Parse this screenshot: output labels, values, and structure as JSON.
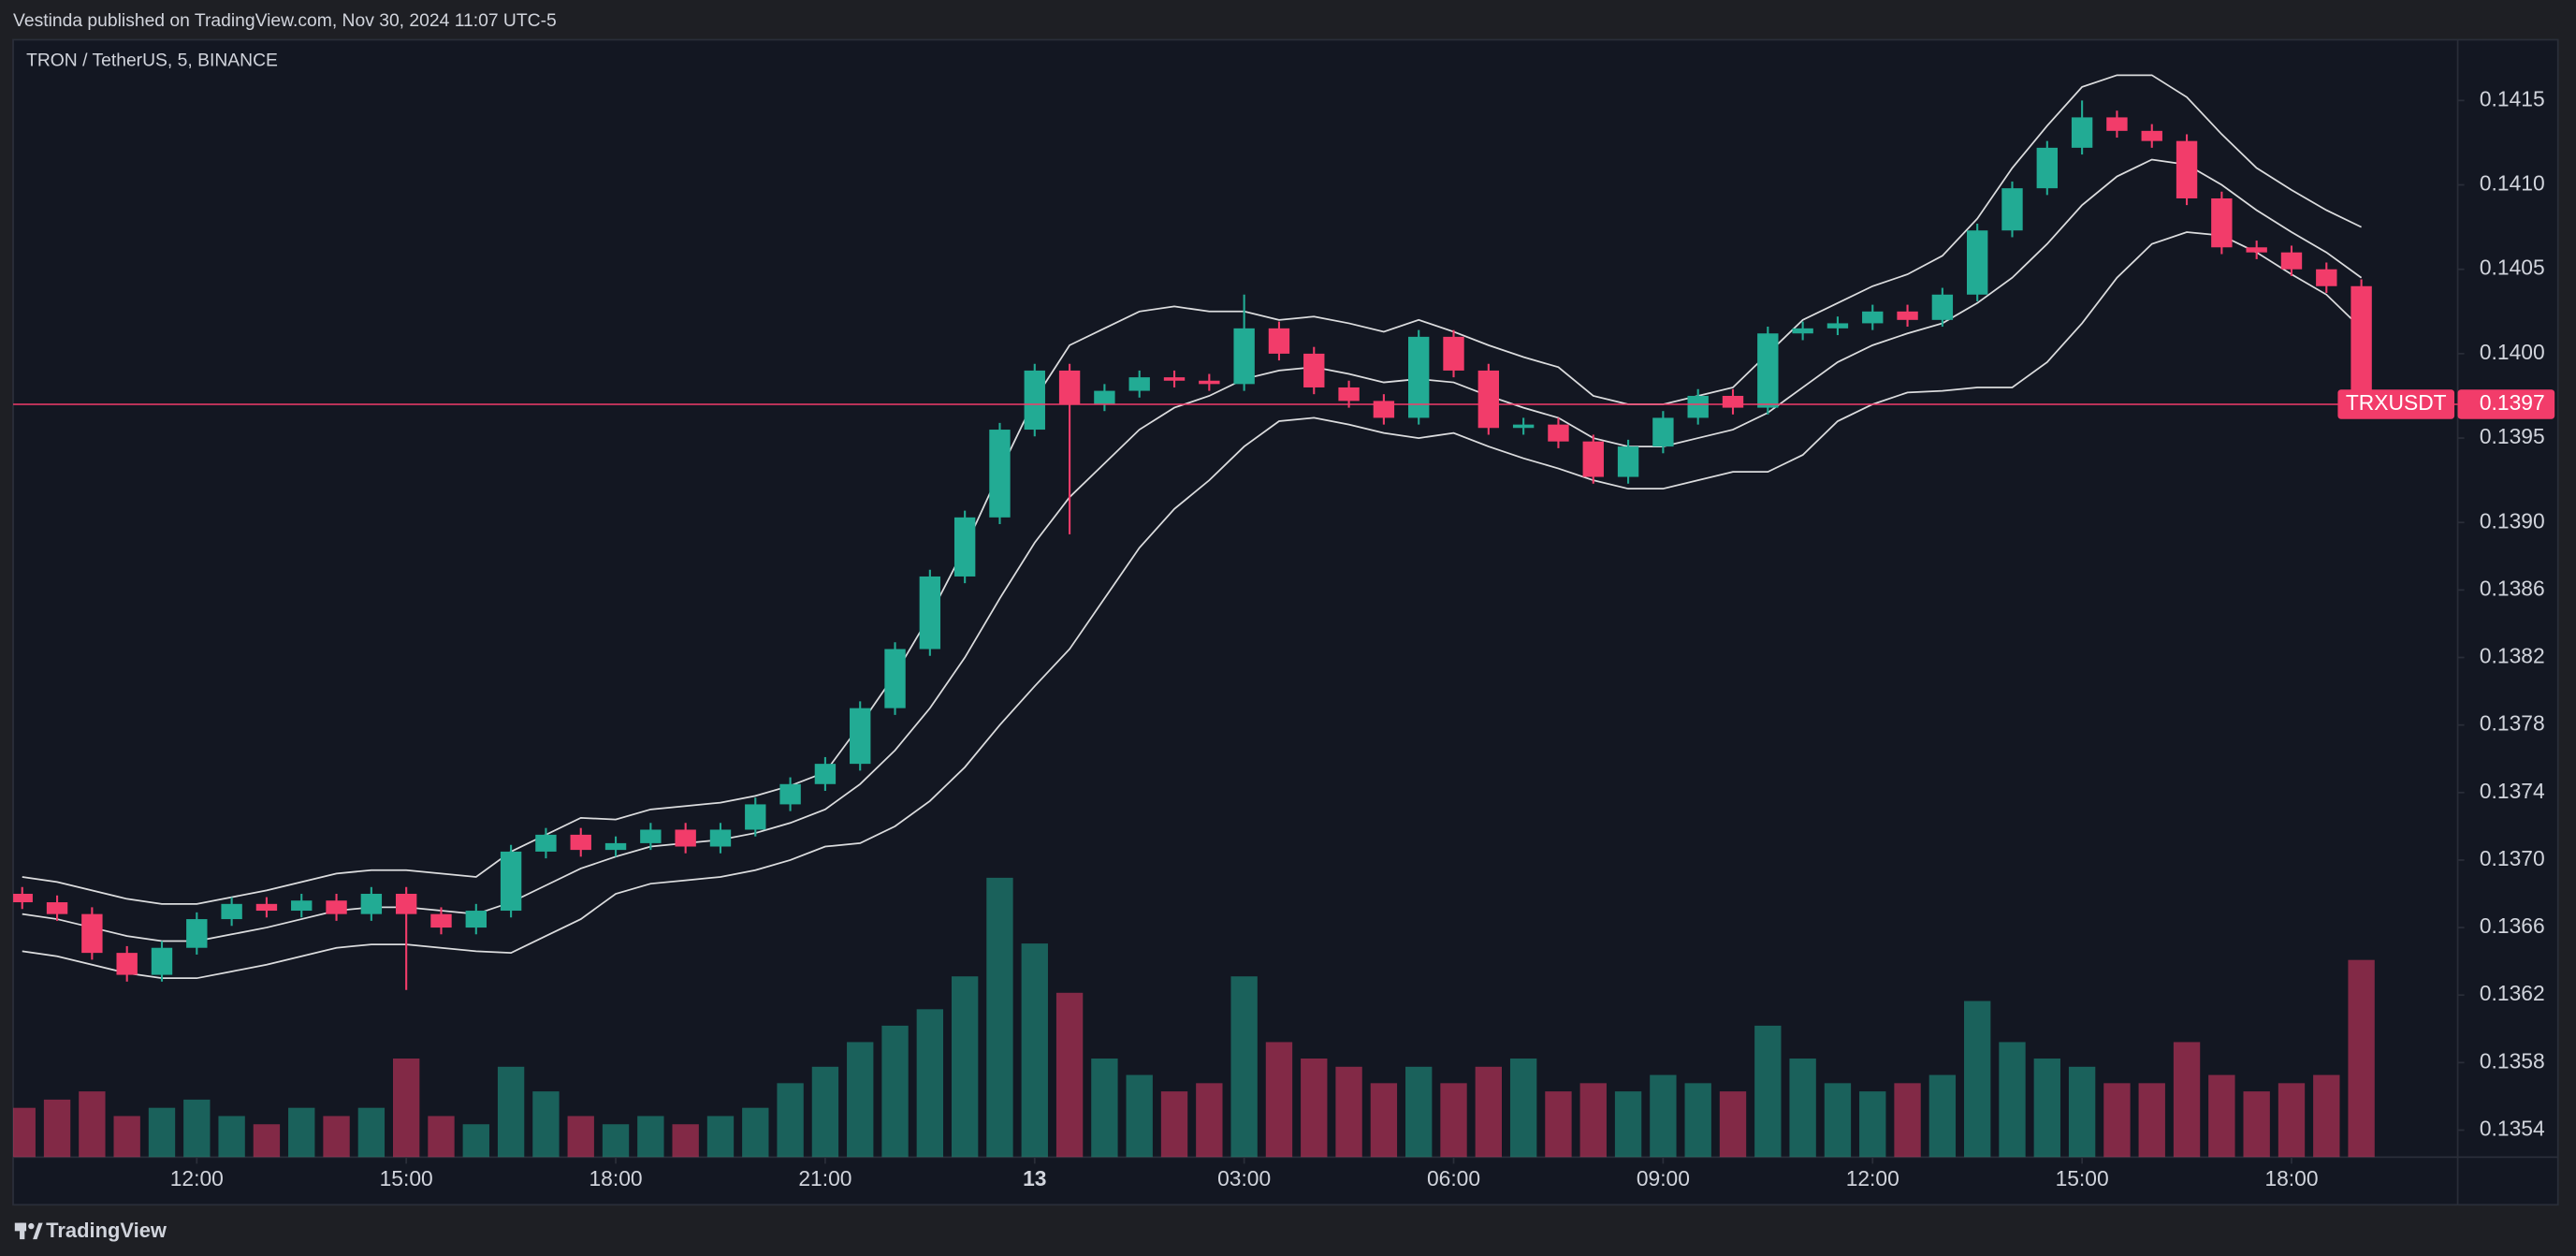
{
  "header": {
    "text": "Vestinda published on TradingView.com, Nov 30, 2024 11:07 UTC-5"
  },
  "chart_data": {
    "type": "candlestick",
    "title": "TRON / TetherUS, 5, BINANCE",
    "symbol": "TRXUSDT",
    "last_price": 0.1397,
    "up_color": "#22ab94",
    "down_color": "#f23c6a",
    "x": [
      9.5,
      10,
      10.5,
      11,
      11.5,
      12,
      12.5,
      13,
      13.5,
      14,
      14.5,
      15,
      15.5,
      16,
      16.5,
      17,
      17.5,
      18,
      18.5,
      19,
      19.5,
      20,
      20.5,
      21,
      21.5,
      22,
      22.5,
      23,
      23.5,
      24,
      24.5,
      25,
      25.5,
      26,
      26.5,
      27,
      27.5,
      28,
      28.5,
      29,
      29.5,
      30,
      30.5,
      31,
      31.5,
      32,
      32.5,
      33,
      33.5,
      34,
      34.5,
      35,
      35.5,
      36,
      36.5,
      37,
      37.5,
      38,
      38.5,
      39,
      39.5,
      40,
      40.5,
      41,
      41.5,
      42,
      42.5,
      43
    ],
    "open": [
      0.1368,
      0.13675,
      0.13668,
      0.13645,
      0.13632,
      0.13648,
      0.13665,
      0.13674,
      0.1367,
      0.13676,
      0.13668,
      0.1368,
      0.13668,
      0.1366,
      0.1367,
      0.13705,
      0.13715,
      0.13706,
      0.1371,
      0.13718,
      0.13708,
      0.13718,
      0.13733,
      0.13745,
      0.13757,
      0.1379,
      0.13825,
      0.13868,
      0.13903,
      0.13955,
      0.1399,
      0.1397,
      0.13978,
      0.13986,
      0.13984,
      0.13982,
      0.14015,
      0.14,
      0.1398,
      0.13972,
      0.13962,
      0.1401,
      0.1399,
      0.13956,
      0.13958,
      0.13948,
      0.13927,
      0.13945,
      0.13962,
      0.13975,
      0.13968,
      0.14012,
      0.14015,
      0.14018,
      0.14025,
      0.1402,
      0.14035,
      0.14073,
      0.14098,
      0.14122,
      0.1414,
      0.14132,
      0.14126,
      0.14092,
      0.14063,
      0.1406,
      0.1405,
      0.1404
    ],
    "high": [
      0.13684,
      0.13679,
      0.13672,
      0.13649,
      0.13652,
      0.13669,
      0.13678,
      0.13678,
      0.1368,
      0.1368,
      0.13684,
      0.13684,
      0.13672,
      0.13674,
      0.13709,
      0.13719,
      0.13719,
      0.13714,
      0.13722,
      0.13722,
      0.13722,
      0.13737,
      0.13749,
      0.13761,
      0.13794,
      0.13829,
      0.13872,
      0.13907,
      0.13959,
      0.13994,
      0.13994,
      0.13982,
      0.1399,
      0.1399,
      0.13988,
      0.14035,
      0.14019,
      0.14004,
      0.13984,
      0.13976,
      0.14014,
      0.14014,
      0.13994,
      0.13962,
      0.13962,
      0.13952,
      0.13949,
      0.13966,
      0.13979,
      0.13979,
      0.14016,
      0.14019,
      0.14022,
      0.14029,
      0.14029,
      0.14039,
      0.14077,
      0.14102,
      0.14126,
      0.1415,
      0.14144,
      0.14136,
      0.1413,
      0.14096,
      0.14067,
      0.14064,
      0.14054,
      0.14044
    ],
    "low": [
      0.13671,
      0.13664,
      0.13641,
      0.13628,
      0.13628,
      0.13644,
      0.13661,
      0.13666,
      0.13666,
      0.13664,
      0.13664,
      0.13623,
      0.13656,
      0.13656,
      0.13666,
      0.13701,
      0.13702,
      0.13702,
      0.13706,
      0.13704,
      0.13704,
      0.13714,
      0.13729,
      0.13741,
      0.13753,
      0.13786,
      0.13821,
      0.13864,
      0.13899,
      0.13951,
      0.13893,
      0.13966,
      0.13974,
      0.1398,
      0.13978,
      0.13978,
      0.13996,
      0.13976,
      0.13968,
      0.13958,
      0.13958,
      0.13986,
      0.13952,
      0.13952,
      0.13944,
      0.13923,
      0.13923,
      0.13941,
      0.13958,
      0.13964,
      0.13964,
      0.14008,
      0.14011,
      0.14014,
      0.14016,
      0.14016,
      0.14031,
      0.14069,
      0.14094,
      0.14118,
      0.14128,
      0.14122,
      0.14088,
      0.14059,
      0.14056,
      0.14046,
      0.14036,
      0.13966
    ],
    "close": [
      0.13675,
      0.13668,
      0.13645,
      0.13632,
      0.13648,
      0.13665,
      0.13674,
      0.1367,
      0.13676,
      0.13668,
      0.1368,
      0.13668,
      0.1366,
      0.1367,
      0.13705,
      0.13715,
      0.13706,
      0.1371,
      0.13718,
      0.13708,
      0.13718,
      0.13733,
      0.13745,
      0.13757,
      0.1379,
      0.13825,
      0.13868,
      0.13903,
      0.13955,
      0.1399,
      0.1397,
      0.13978,
      0.13986,
      0.13984,
      0.13982,
      0.14015,
      0.14,
      0.1398,
      0.13972,
      0.13962,
      0.1401,
      0.1399,
      0.13956,
      0.13958,
      0.13948,
      0.13927,
      0.13945,
      0.13962,
      0.13975,
      0.13968,
      0.14012,
      0.14015,
      0.14018,
      0.14025,
      0.1402,
      0.14035,
      0.14073,
      0.14098,
      0.14122,
      0.1414,
      0.14132,
      0.14126,
      0.14092,
      0.14063,
      0.1406,
      0.1405,
      0.1404,
      0.1397
    ],
    "volume": [
      30,
      35,
      40,
      25,
      30,
      35,
      25,
      20,
      30,
      25,
      30,
      60,
      25,
      20,
      55,
      40,
      25,
      20,
      25,
      20,
      25,
      30,
      45,
      55,
      70,
      80,
      90,
      110,
      170,
      130,
      100,
      60,
      50,
      40,
      45,
      110,
      70,
      60,
      55,
      45,
      55,
      45,
      55,
      60,
      40,
      45,
      40,
      50,
      45,
      40,
      80,
      60,
      45,
      40,
      45,
      50,
      95,
      70,
      60,
      55,
      45,
      45,
      70,
      50,
      40,
      45,
      50,
      120
    ],
    "bands": [
      {
        "color": "#ffffff",
        "values": [
          0.1369,
          0.13687,
          0.13682,
          0.13677,
          0.13674,
          0.13674,
          0.13678,
          0.13682,
          0.13687,
          0.13692,
          0.13694,
          0.13694,
          0.13692,
          0.1369,
          0.13705,
          0.13715,
          0.13725,
          0.13724,
          0.1373,
          0.13732,
          0.13734,
          0.13738,
          0.13744,
          0.13752,
          0.1378,
          0.1381,
          0.13845,
          0.13885,
          0.1393,
          0.13973,
          0.14005,
          0.14015,
          0.14025,
          0.14028,
          0.14025,
          0.14025,
          0.1402,
          0.14022,
          0.14018,
          0.14013,
          0.1402,
          0.14013,
          0.14005,
          0.13998,
          0.13992,
          0.13975,
          0.1397,
          0.1397,
          0.13975,
          0.1398,
          0.14,
          0.1402,
          0.1403,
          0.1404,
          0.14047,
          0.14058,
          0.1408,
          0.1411,
          0.14135,
          0.14158,
          0.14165,
          0.14165,
          0.14152,
          0.1413,
          0.1411,
          0.14097,
          0.14085,
          0.14075
        ]
      },
      {
        "color": "#ffffff",
        "values": [
          0.13668,
          0.13665,
          0.1366,
          0.13655,
          0.13652,
          0.13652,
          0.13656,
          0.1366,
          0.13665,
          0.1367,
          0.13672,
          0.13672,
          0.1367,
          0.13668,
          0.13675,
          0.13685,
          0.13695,
          0.13702,
          0.13708,
          0.1371,
          0.13712,
          0.13716,
          0.13722,
          0.1373,
          0.13745,
          0.13765,
          0.1379,
          0.1382,
          0.13855,
          0.13888,
          0.13915,
          0.13935,
          0.13955,
          0.13968,
          0.13975,
          0.13985,
          0.1399,
          0.13992,
          0.13988,
          0.13983,
          0.13985,
          0.13983,
          0.13975,
          0.13968,
          0.13962,
          0.1395,
          0.13945,
          0.13945,
          0.1395,
          0.13955,
          0.13965,
          0.1398,
          0.13995,
          0.14005,
          0.14012,
          0.14018,
          0.1403,
          0.14045,
          0.14065,
          0.14088,
          0.14105,
          0.14115,
          0.14112,
          0.141,
          0.14085,
          0.14072,
          0.1406,
          0.14045
        ]
      },
      {
        "color": "#ffffff",
        "values": [
          0.13646,
          0.13643,
          0.13638,
          0.13633,
          0.1363,
          0.1363,
          0.13634,
          0.13638,
          0.13643,
          0.13648,
          0.1365,
          0.1365,
          0.13648,
          0.13646,
          0.13645,
          0.13655,
          0.13665,
          0.1368,
          0.13686,
          0.13688,
          0.1369,
          0.13694,
          0.137,
          0.13708,
          0.1371,
          0.1372,
          0.13735,
          0.13755,
          0.1378,
          0.13803,
          0.13825,
          0.13855,
          0.13885,
          0.13908,
          0.13925,
          0.13945,
          0.1396,
          0.13962,
          0.13958,
          0.13953,
          0.1395,
          0.13953,
          0.13945,
          0.13938,
          0.13932,
          0.13925,
          0.1392,
          0.1392,
          0.13925,
          0.1393,
          0.1393,
          0.1394,
          0.1396,
          0.1397,
          0.13977,
          0.13978,
          0.1398,
          0.1398,
          0.13995,
          0.14018,
          0.14045,
          0.14065,
          0.14072,
          0.1407,
          0.1406,
          0.14047,
          0.14035,
          0.14015
        ]
      }
    ],
    "xlim": [
      9.37,
      44.38
    ],
    "xticks": [
      {
        "value": 12,
        "label": "12:00"
      },
      {
        "value": 15,
        "label": "15:00"
      },
      {
        "value": 18,
        "label": "18:00"
      },
      {
        "value": 21,
        "label": "21:00"
      },
      {
        "value": 24,
        "label": "13"
      },
      {
        "value": 27,
        "label": "03:00"
      },
      {
        "value": 30,
        "label": "06:00"
      },
      {
        "value": 33,
        "label": "09:00"
      },
      {
        "value": 36,
        "label": "12:00"
      },
      {
        "value": 39,
        "label": "15:00"
      },
      {
        "value": 42,
        "label": "18:00"
      }
    ],
    "ylim": [
      0.13524,
      0.14186
    ],
    "yticks": [
      0.1415,
      {
        "value": 0.141,
        "label": "0.1410"
      },
      0.1405,
      {
        "value": 0.14,
        "label": "0.1400"
      },
      0.1395,
      {
        "value": 0.139,
        "label": "0.1390"
      },
      0.1386,
      0.1382,
      0.1378,
      0.1374,
      {
        "value": 0.137,
        "label": "0.1370"
      },
      0.1366,
      0.1362,
      0.1358,
      0.1354
    ]
  },
  "footer": {
    "brand": "TradingView"
  }
}
